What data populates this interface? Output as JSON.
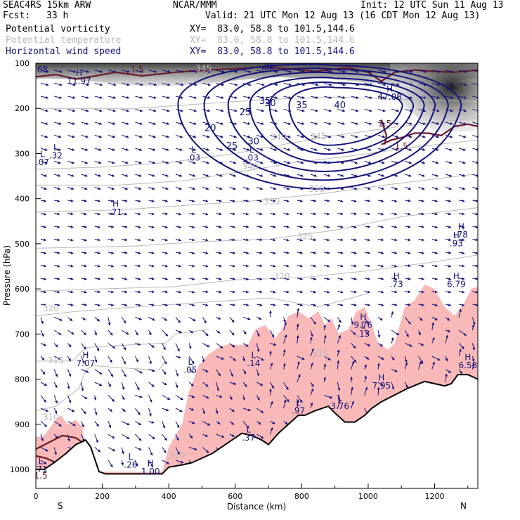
{
  "header": {
    "model": "SEAC4RS 15km ARW",
    "center": "NCAR/MMM",
    "init": "Init: 12 UTC Sun 11 Aug 13",
    "fcst_label": "Fcst:",
    "fcst_value": "33 h",
    "valid": "Valid: 21 UTC Mon 12 Aug 13 (16 CDT Mon 12 Aug 13)",
    "fields": [
      {
        "name": "Potential vorticity",
        "xy": "XY=  83.0, 58.8 to 101.5,144.6",
        "color": "#000000"
      },
      {
        "name": "Potential temperature",
        "xy": "XY=  83.0, 58.8 to 101.5,144.6",
        "color": "#b8b8b8"
      },
      {
        "name": "Horizontal wind speed",
        "xy": "XY=  83.0, 58.8 to 101.5,144.6",
        "color": "#14147a"
      }
    ]
  },
  "chart_data": {
    "type": "cross-section",
    "xlabel": "Distance (km)",
    "ylabel": "Pressure (hPa)",
    "x_ticks": [
      0,
      200,
      400,
      600,
      800,
      1000,
      1200
    ],
    "y_ticks": [
      100,
      200,
      300,
      400,
      500,
      600,
      700,
      800,
      900,
      1000
    ],
    "xlim": [
      0,
      1330
    ],
    "ylim": [
      1000,
      100
    ],
    "end_labels": {
      "left": "S",
      "right": "N"
    },
    "terrain": [
      [
        0,
        1000
      ],
      [
        25,
        1000
      ],
      [
        55,
        985
      ],
      [
        90,
        965
      ],
      [
        120,
        945
      ],
      [
        150,
        935
      ],
      [
        165,
        950
      ],
      [
        190,
        1005
      ],
      [
        210,
        1010
      ],
      [
        380,
        1010
      ],
      [
        400,
        995
      ],
      [
        440,
        990
      ],
      [
        470,
        985
      ],
      [
        500,
        975
      ],
      [
        530,
        965
      ],
      [
        560,
        950
      ],
      [
        590,
        935
      ],
      [
        620,
        920
      ],
      [
        650,
        925
      ],
      [
        680,
        935
      ],
      [
        700,
        945
      ],
      [
        730,
        920
      ],
      [
        760,
        900
      ],
      [
        790,
        880
      ],
      [
        810,
        880
      ],
      [
        840,
        870
      ],
      [
        880,
        860
      ],
      [
        900,
        875
      ],
      [
        930,
        895
      ],
      [
        960,
        895
      ],
      [
        990,
        880
      ],
      [
        1010,
        865
      ],
      [
        1040,
        850
      ],
      [
        1080,
        835
      ],
      [
        1120,
        820
      ],
      [
        1170,
        805
      ],
      [
        1200,
        810
      ],
      [
        1230,
        815
      ],
      [
        1250,
        810
      ],
      [
        1270,
        790
      ],
      [
        1300,
        790
      ],
      [
        1330,
        800
      ]
    ],
    "wind_speed": {
      "color": "#14147a",
      "contour_labels": [
        {
          "text": "20",
          "x": 525,
          "y": 250
        },
        {
          "text": "25",
          "x": 630,
          "y": 215
        },
        {
          "text": "25",
          "x": 590,
          "y": 290
        },
        {
          "text": "30",
          "x": 705,
          "y": 195
        },
        {
          "text": "30",
          "x": 655,
          "y": 280
        },
        {
          "text": "35",
          "x": 800,
          "y": 200
        },
        {
          "text": "40",
          "x": 915,
          "y": 200
        },
        {
          "text": "25",
          "x": 705,
          "y": 113
        },
        {
          "text": "35",
          "x": 690,
          "y": 190
        },
        {
          "text": "20",
          "x": 695,
          "y": 113
        }
      ],
      "extrema": [
        {
          "kind": "H",
          "value": "47.08",
          "x": 1065,
          "y": 175
        },
        {
          "kind": "H",
          "value": "11.97",
          "x": 130,
          "y": 140
        },
        {
          "kind": "H",
          "value": ".71",
          "x": 240,
          "y": 430
        },
        {
          "kind": "H",
          "value": "7.07",
          "x": 150,
          "y": 765
        },
        {
          "kind": "H",
          "value": ".73",
          "x": 1085,
          "y": 590
        },
        {
          "kind": "H",
          "value": "6.79",
          "x": 1265,
          "y": 590
        },
        {
          "kind": "H",
          "value": "9.76",
          "x": 985,
          "y": 680
        },
        {
          "kind": "H",
          "value": "7.95",
          "x": 1040,
          "y": 815
        },
        {
          "kind": "H",
          "value": "6.58",
          "x": 1300,
          "y": 770
        },
        {
          "kind": "H",
          "value": ".78",
          "x": 1280,
          "y": 480
        },
        {
          "kind": "H",
          "value": ".93",
          "x": 1265,
          "y": 500
        },
        {
          "kind": "H",
          "value": "1.00",
          "x": 345,
          "y": 1005
        },
        {
          "kind": "L",
          "value": ".07",
          "x": 20,
          "y": 320
        },
        {
          "kind": "L",
          "value": ".32",
          "x": 60,
          "y": 305
        },
        {
          "kind": "L",
          "value": ".03",
          "x": 475,
          "y": 310
        },
        {
          "kind": "L",
          "value": ".03",
          "x": 650,
          "y": 310
        },
        {
          "kind": "L",
          "value": ".05",
          "x": 465,
          "y": 780
        },
        {
          "kind": "L",
          "value": ".14",
          "x": 655,
          "y": 765
        },
        {
          "kind": "L",
          "value": ".13",
          "x": 985,
          "y": 700
        },
        {
          "kind": "L",
          "value": ".37",
          "x": 640,
          "y": 930
        },
        {
          "kind": "L",
          "value": ".97",
          "x": 790,
          "y": 870
        },
        {
          "kind": "L",
          "value": "3.76",
          "x": 915,
          "y": 860
        },
        {
          "kind": "L",
          "value": ".26",
          "x": 285,
          "y": 990
        },
        {
          "kind": "L",
          "value": ".71",
          "x": 15,
          "y": 1000
        }
      ]
    },
    "theta": {
      "color": "#b8b8b8",
      "labels": [
        {
          "text": "310",
          "x": 45,
          "y": 890
        },
        {
          "text": "315",
          "x": 60,
          "y": 765
        },
        {
          "text": "320",
          "x": 45,
          "y": 650
        },
        {
          "text": "320",
          "x": 740,
          "y": 578
        },
        {
          "text": "325",
          "x": 810,
          "y": 490
        },
        {
          "text": "330",
          "x": 710,
          "y": 413
        },
        {
          "text": "330",
          "x": 845,
          "y": 385
        },
        {
          "text": "340",
          "x": 645,
          "y": 335
        },
        {
          "text": "340",
          "x": 730,
          "y": 270
        },
        {
          "text": "345",
          "x": 850,
          "y": 268
        },
        {
          "text": "310",
          "x": 425,
          "y": 975
        },
        {
          "text": "345",
          "x": 505,
          "y": 118
        },
        {
          "text": "315",
          "x": 855,
          "y": 750
        }
      ]
    },
    "pv": {
      "color": "#6a1a2a",
      "labels": [
        {
          "text": "1.5",
          "x": 305,
          "y": 120
        },
        {
          "text": "1.5",
          "x": 1050,
          "y": 240
        },
        {
          "text": "1.5",
          "x": 1100,
          "y": 290
        },
        {
          "text": "1.5",
          "x": 15,
          "y": 1020
        }
      ]
    },
    "left_number": {
      "text": "68",
      "x": 20,
      "y": 120
    },
    "grid": false,
    "legend": "none"
  }
}
